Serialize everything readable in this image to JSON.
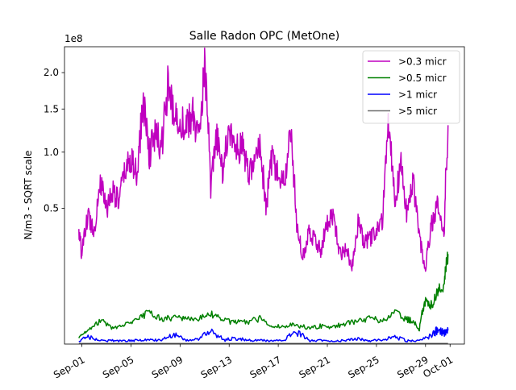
{
  "chart_data": {
    "type": "line",
    "title": "Salle Radon OPC (MetOne)",
    "ylabel": "N/m3 - SQRT scale",
    "xlabel": "",
    "y_scale": "sqrt",
    "offset_text": "1e8",
    "ylim": [
      0,
      240000000
    ],
    "y_ticks": [
      {
        "label": "0.5",
        "value": 50000000
      },
      {
        "label": "1.0",
        "value": 100000000
      },
      {
        "label": "1.5",
        "value": 150000000
      },
      {
        "label": "2.0",
        "value": 200000000
      }
    ],
    "xlim": [
      "2024-08-30T14:00",
      "2024-10-02T04:00"
    ],
    "x_ticks": [
      {
        "label": "Sep-01",
        "date": "2024-09-01"
      },
      {
        "label": "Sep-05",
        "date": "2024-09-05"
      },
      {
        "label": "Sep-09",
        "date": "2024-09-09"
      },
      {
        "label": "Sep-13",
        "date": "2024-09-13"
      },
      {
        "label": "Sep-17",
        "date": "2024-09-17"
      },
      {
        "label": "Sep-21",
        "date": "2024-09-21"
      },
      {
        "label": "Sep-25",
        "date": "2024-09-25"
      },
      {
        "label": "Sep-29",
        "date": "2024-09-29"
      },
      {
        "label": "Oct-01",
        "date": "2024-10-01"
      }
    ],
    "grid": false,
    "legend_position": "top-right",
    "series": [
      {
        "name": ">0.3 micr",
        "color": "#bf00bf",
        "x": [
          "2024-08-31T18:00",
          "2024-09-01T00:00",
          "2024-09-01T12:00",
          "2024-09-02T00:00",
          "2024-09-02T12:00",
          "2024-09-03T00:00",
          "2024-09-03T12:00",
          "2024-09-04T00:00",
          "2024-09-04T12:00",
          "2024-09-05T00:00",
          "2024-09-05T12:00",
          "2024-09-06T00:00",
          "2024-09-06T12:00",
          "2024-09-07T00:00",
          "2024-09-07T12:00",
          "2024-09-08T00:00",
          "2024-09-08T12:00",
          "2024-09-09T00:00",
          "2024-09-09T12:00",
          "2024-09-10T00:00",
          "2024-09-10T12:00",
          "2024-09-11T00:00",
          "2024-09-11T12:00",
          "2024-09-12T00:00",
          "2024-09-12T12:00",
          "2024-09-13T00:00",
          "2024-09-13T12:00",
          "2024-09-14T00:00",
          "2024-09-14T12:00",
          "2024-09-15T00:00",
          "2024-09-15T12:00",
          "2024-09-16T00:00",
          "2024-09-16T12:00",
          "2024-09-17T00:00",
          "2024-09-17T12:00",
          "2024-09-18T00:00",
          "2024-09-18T12:00",
          "2024-09-19T00:00",
          "2024-09-19T12:00",
          "2024-09-20T00:00",
          "2024-09-20T12:00",
          "2024-09-21T00:00",
          "2024-09-21T12:00",
          "2024-09-22T00:00",
          "2024-09-22T12:00",
          "2024-09-23T00:00",
          "2024-09-23T12:00",
          "2024-09-24T00:00",
          "2024-09-24T12:00",
          "2024-09-25T00:00",
          "2024-09-25T12:00",
          "2024-09-26T00:00",
          "2024-09-26T12:00",
          "2024-09-27T00:00",
          "2024-09-27T12:00",
          "2024-09-28T00:00",
          "2024-09-28T12:00",
          "2024-09-29T00:00",
          "2024-09-29T12:00",
          "2024-09-30T00:00",
          "2024-09-30T12:00",
          "2024-09-30T20:00"
        ],
        "values": [
          34000000,
          22000000,
          45000000,
          35000000,
          72000000,
          50000000,
          65000000,
          55000000,
          80000000,
          95000000,
          75000000,
          160000000,
          100000000,
          120000000,
          105000000,
          180000000,
          140000000,
          140000000,
          125000000,
          145000000,
          115000000,
          210000000,
          65000000,
          115000000,
          80000000,
          130000000,
          100000000,
          110000000,
          80000000,
          85000000,
          110000000,
          48000000,
          95000000,
          75000000,
          70000000,
          120000000,
          40000000,
          20000000,
          35000000,
          30000000,
          24000000,
          40000000,
          45000000,
          22000000,
          25000000,
          16000000,
          40000000,
          28000000,
          30000000,
          35000000,
          42000000,
          140000000,
          55000000,
          85000000,
          45000000,
          70000000,
          30000000,
          15000000,
          40000000,
          55000000,
          30000000,
          130000000
        ]
      },
      {
        "name": ">0.5 micr",
        "color": "#008000",
        "x": [
          "2024-08-31T18:00",
          "2024-09-01T12:00",
          "2024-09-02T12:00",
          "2024-09-03T12:00",
          "2024-09-04T12:00",
          "2024-09-05T12:00",
          "2024-09-06T12:00",
          "2024-09-07T12:00",
          "2024-09-08T12:00",
          "2024-09-09T12:00",
          "2024-09-10T12:00",
          "2024-09-11T12:00",
          "2024-09-12T12:00",
          "2024-09-13T12:00",
          "2024-09-14T12:00",
          "2024-09-15T12:00",
          "2024-09-16T12:00",
          "2024-09-17T12:00",
          "2024-09-18T12:00",
          "2024-09-19T12:00",
          "2024-09-20T12:00",
          "2024-09-21T12:00",
          "2024-09-22T12:00",
          "2024-09-23T12:00",
          "2024-09-24T12:00",
          "2024-09-25T12:00",
          "2024-09-26T12:00",
          "2024-09-27T12:00",
          "2024-09-28T00:00",
          "2024-09-28T12:00",
          "2024-09-29T00:00",
          "2024-09-29T12:00",
          "2024-09-30T00:00",
          "2024-09-30T12:00",
          "2024-09-30T20:00"
        ],
        "values": [
          100000,
          500000,
          1500000,
          700000,
          1000000,
          1500000,
          2800000,
          1600000,
          2000000,
          1600000,
          1800000,
          2500000,
          1500000,
          1300000,
          1300000,
          1800000,
          800000,
          900000,
          1000000,
          700000,
          900000,
          800000,
          1200000,
          1400000,
          1800000,
          1500000,
          2600000,
          1700000,
          1400000,
          500000,
          5500000,
          4000000,
          8000000,
          9000000,
          22000000
        ]
      },
      {
        "name": ">1 micr",
        "color": "#0000ff",
        "x": [
          "2024-08-31T18:00",
          "2024-09-01T12:00",
          "2024-09-02T12:00",
          "2024-09-03T12:00",
          "2024-09-04T12:00",
          "2024-09-05T12:00",
          "2024-09-06T12:00",
          "2024-09-07T12:00",
          "2024-09-08T12:00",
          "2024-09-09T12:00",
          "2024-09-10T12:00",
          "2024-09-11T12:00",
          "2024-09-12T12:00",
          "2024-09-13T12:00",
          "2024-09-14T12:00",
          "2024-09-15T12:00",
          "2024-09-16T12:00",
          "2024-09-17T12:00",
          "2024-09-18T12:00",
          "2024-09-19T12:00",
          "2024-09-20T12:00",
          "2024-09-21T12:00",
          "2024-09-22T12:00",
          "2024-09-23T12:00",
          "2024-09-24T12:00",
          "2024-09-25T12:00",
          "2024-09-26T12:00",
          "2024-09-27T12:00",
          "2024-09-28T12:00",
          "2024-09-29T12:00",
          "2024-09-30T00:00",
          "2024-09-30T12:00",
          "2024-09-30T20:00"
        ],
        "values": [
          20000,
          150000,
          30000,
          40000,
          30000,
          40000,
          50000,
          40000,
          250000,
          40000,
          60000,
          500000,
          40000,
          100000,
          40000,
          40000,
          30000,
          30000,
          400000,
          30000,
          40000,
          30000,
          40000,
          80000,
          30000,
          50000,
          150000,
          30000,
          30000,
          200000,
          600000,
          350000,
          500000
        ]
      },
      {
        "name": ">5 micr",
        "color": "#6e6e6e",
        "x": [
          "2024-08-31T18:00",
          "2024-09-30T20:00"
        ],
        "values": [
          1000,
          1000
        ]
      }
    ]
  }
}
